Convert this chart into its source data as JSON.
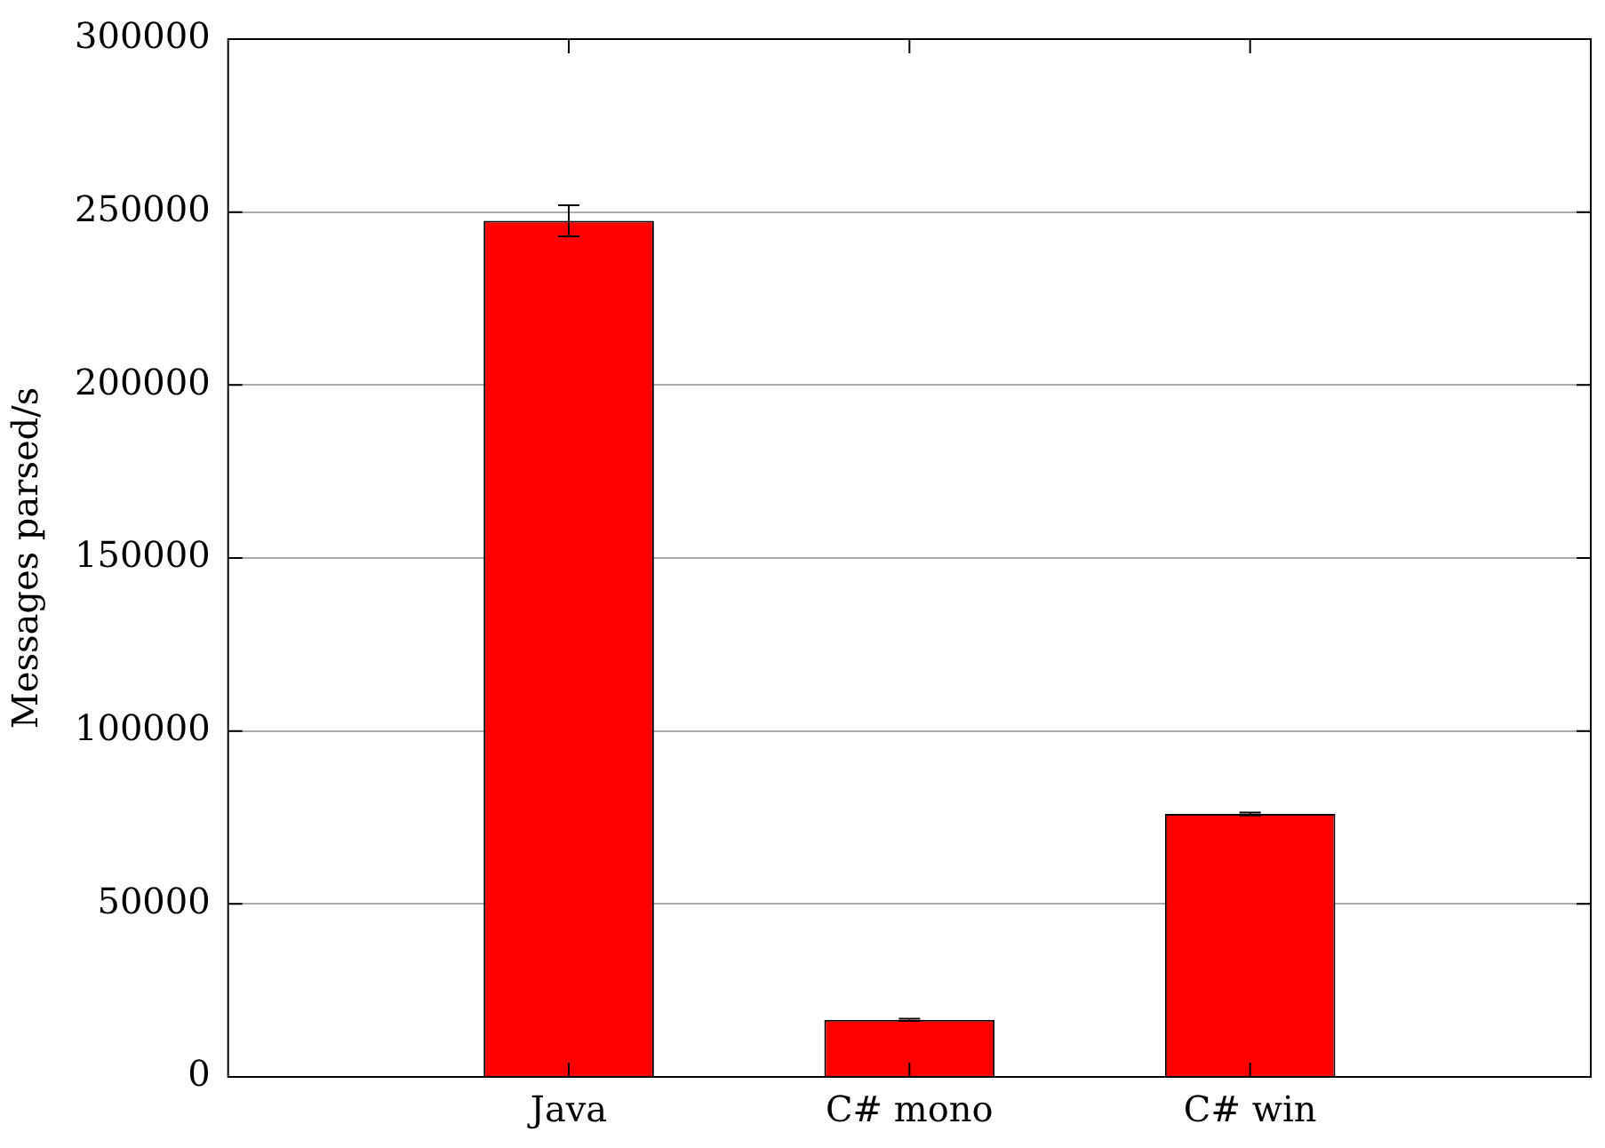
{
  "chart_data": {
    "type": "bar",
    "ylabel": "Messages parsed/s",
    "categories": [
      null,
      "Java",
      "C# mono",
      "C# win",
      null
    ],
    "values": [
      null,
      247500,
      16500,
      76000,
      null
    ],
    "errors": [
      null,
      4500,
      300,
      400,
      null
    ],
    "color": "#ff0000",
    "ylim": [
      0,
      300000
    ],
    "yticks": [
      0,
      50000,
      100000,
      150000,
      200000,
      250000,
      300000
    ],
    "grid": "y",
    "legend": false
  }
}
